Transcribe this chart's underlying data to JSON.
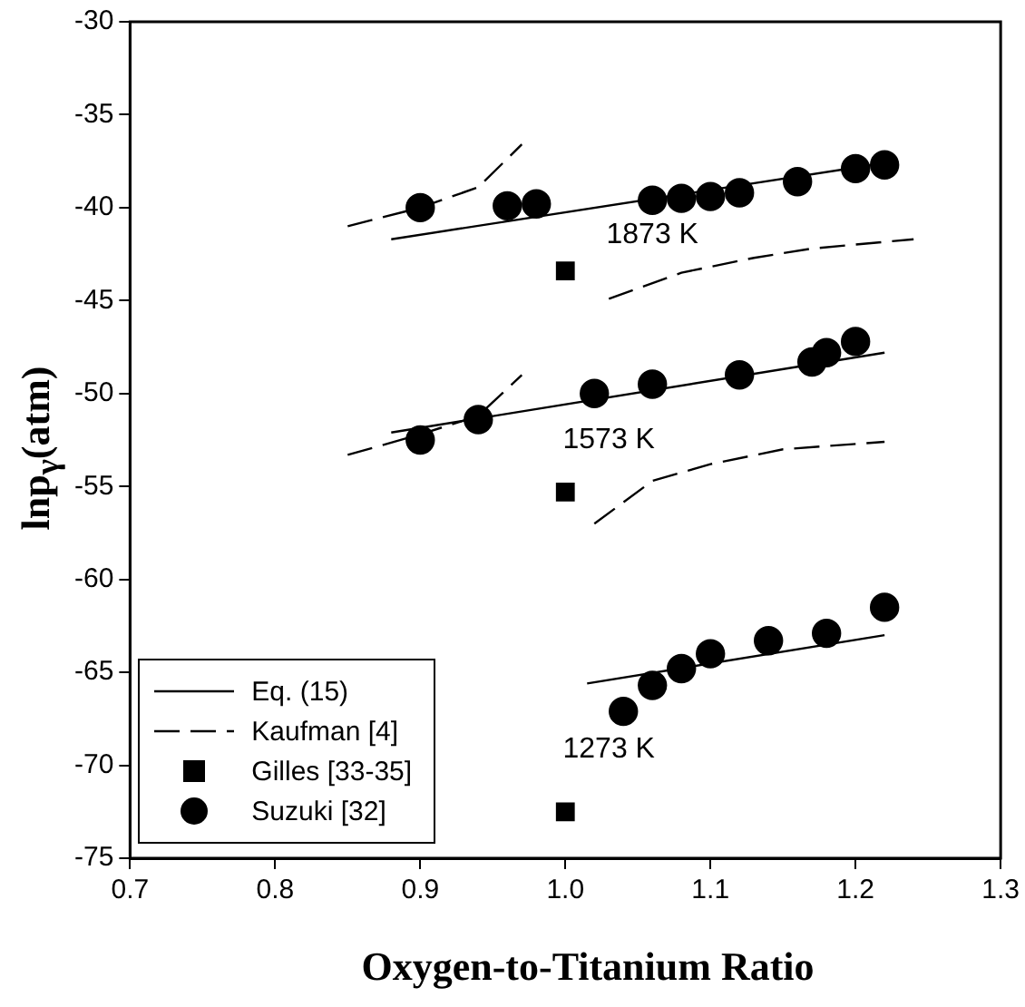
{
  "chart_data": {
    "type": "scatter",
    "xlabel": "Oxygen-to-Titanium Ratio",
    "ylabel": "lnp$_{γ}$(atm)",
    "xlim": [
      0.7,
      1.3
    ],
    "xticks": [
      0.7,
      0.8,
      0.9,
      {
        "value": 1,
        "label": "1.0"
      },
      1.1,
      1.2,
      1.3
    ],
    "ylim": [
      -75,
      -30
    ],
    "yticks": [
      -75,
      -70,
      -65,
      -60,
      -55,
      -50,
      -45,
      -40,
      -35,
      -30
    ],
    "grid": false,
    "legend": "bottom left",
    "annotations": [
      "1873 K",
      "1573 K",
      "1273 K"
    ],
    "series": [
      {
        "name": "Eq. (15)",
        "type": "line",
        "color": "#000000",
        "line_style": "solid",
        "marker": "none",
        "x": [
          0.88,
          1.22
        ],
        "values": [
          -41.7,
          -37.6
        ]
      },
      {
        "type": "line",
        "color": "#000000",
        "line_style": "solid",
        "marker": "none",
        "x": [
          0.88,
          1.22
        ],
        "values": [
          -52.1,
          -47.8
        ]
      },
      {
        "type": "line",
        "color": "#000000",
        "line_style": "solid",
        "marker": "none",
        "x": [
          1.015,
          1.22
        ],
        "values": [
          -65.6,
          -63.0
        ]
      },
      {
        "name": "Kaufman [4]",
        "type": "line",
        "color": "#000000",
        "line_style": "dashed",
        "marker": "none",
        "x": [
          0.85,
          0.9,
          0.94,
          0.97
        ],
        "values": [
          -41.0,
          -40.0,
          -38.9,
          -36.6
        ]
      },
      {
        "type": "line",
        "color": "#000000",
        "line_style": "dashed",
        "marker": "none",
        "x": [
          1.03,
          1.08,
          1.13,
          1.17,
          1.24
        ],
        "values": [
          -44.9,
          -43.5,
          -42.7,
          -42.2,
          -41.7
        ]
      },
      {
        "type": "line",
        "color": "#000000",
        "line_style": "dashed",
        "marker": "none",
        "x": [
          0.85,
          0.9,
          0.94,
          0.97
        ],
        "values": [
          -53.3,
          -52.2,
          -51.2,
          -49.0
        ]
      },
      {
        "type": "line",
        "color": "#000000",
        "line_style": "dashed",
        "marker": "none",
        "x": [
          1.02,
          1.06,
          1.1,
          1.15,
          1.22
        ],
        "values": [
          -57.0,
          -54.7,
          -53.8,
          -53.0,
          -52.6
        ]
      },
      {
        "name": "Gilles [33-35]",
        "color": "#000000",
        "marker": "square",
        "x": [
          1,
          1,
          1
        ],
        "values": [
          -43.4,
          -55.3,
          -72.5
        ]
      },
      {
        "name": "Suzuki [32]",
        "color": "#000000",
        "marker": "circle",
        "x": [
          0.9,
          0.96,
          0.98,
          1.06,
          1.08,
          1.1,
          1.12,
          1.16,
          1.2,
          1.22,
          0.9,
          0.94,
          1.02,
          1.06,
          1.12,
          1.17,
          1.18,
          1.2,
          1.04,
          1.06,
          1.08,
          1.1,
          1.14,
          1.18,
          1.22
        ],
        "values": [
          -40.0,
          -39.9,
          -39.8,
          -39.6,
          -39.5,
          -39.4,
          -39.2,
          -38.6,
          -37.9,
          -37.7,
          -52.5,
          -51.4,
          -50.0,
          -49.5,
          -49.0,
          -48.3,
          -47.8,
          -47.2,
          -67.1,
          -65.7,
          -64.8,
          -64.0,
          -63.3,
          -62.9,
          -61.5
        ]
      }
    ]
  }
}
